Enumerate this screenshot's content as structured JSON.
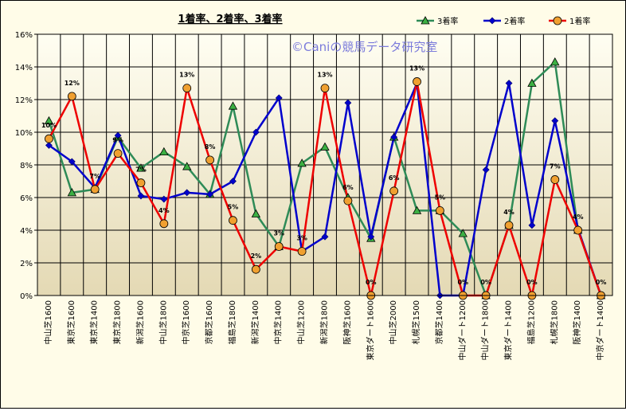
{
  "chart_data": {
    "type": "line",
    "title": "1着率、2着率、3着率",
    "watermark": "©Caniの競馬データ研究室",
    "ylim": [
      0,
      16
    ],
    "yticks": [
      "0%",
      "2%",
      "4%",
      "6%",
      "8%",
      "10%",
      "12%",
      "14%",
      "16%"
    ],
    "grid": true,
    "legend_position": "top-right",
    "categories": [
      "中山芝1600",
      "東京芝1600",
      "東京芝1400",
      "東京芝1800",
      "新潟芝1600",
      "中山芝1800",
      "中京芝1600",
      "京都芝1600",
      "福島芝1800",
      "新潟芝1400",
      "中京芝1400",
      "中山芝1200",
      "新潟芝1800",
      "阪神芝1600",
      "東京ダート1600",
      "中山芝2000",
      "札幌芝1500",
      "京都芝1400",
      "中山ダート1200",
      "中山ダート1800",
      "東京ダート1400",
      "福島芝1200",
      "札幌芝1800",
      "阪神芝1400",
      "中京ダート1400"
    ],
    "series": [
      {
        "name": "3着率",
        "color": "#2e8b57",
        "marker": "triangle",
        "values": [
          10.7,
          6.3,
          6.5,
          9.7,
          7.8,
          8.8,
          7.9,
          6.2,
          11.6,
          5.0,
          3.0,
          8.1,
          9.1,
          6.0,
          3.5,
          9.7,
          5.2,
          5.2,
          3.8,
          0.0,
          4.3,
          13.0,
          14.3,
          4.0,
          0.0
        ]
      },
      {
        "name": "2着率",
        "color": "#0000cc",
        "marker": "diamond",
        "values": [
          9.2,
          8.2,
          6.6,
          9.8,
          6.1,
          5.9,
          6.3,
          6.2,
          7.0,
          10.0,
          12.1,
          2.7,
          3.6,
          11.8,
          3.6,
          9.7,
          13.0,
          0.0,
          0.0,
          7.7,
          13.0,
          4.3,
          10.7,
          4.1,
          0.0
        ]
      },
      {
        "name": "1着率",
        "color": "#ee0000",
        "marker": "circle",
        "values": [
          9.6,
          12.2,
          6.5,
          8.7,
          6.9,
          4.4,
          12.7,
          8.3,
          4.6,
          1.6,
          3.0,
          2.7,
          12.7,
          5.8,
          0.0,
          6.4,
          13.1,
          5.2,
          0.0,
          0.0,
          4.3,
          0.0,
          7.1,
          4.0,
          0.0
        ]
      }
    ],
    "data_labels": [
      "10%",
      "12%",
      "7%",
      "9%",
      "7%",
      "4%",
      "13%",
      "8%",
      "5%",
      "2%",
      "3%",
      "3%",
      "13%",
      "6%",
      "0%",
      "6%",
      "13%",
      "5%",
      "0%",
      "0%",
      "4%",
      "0%",
      "7%",
      "4%",
      "0%"
    ]
  }
}
